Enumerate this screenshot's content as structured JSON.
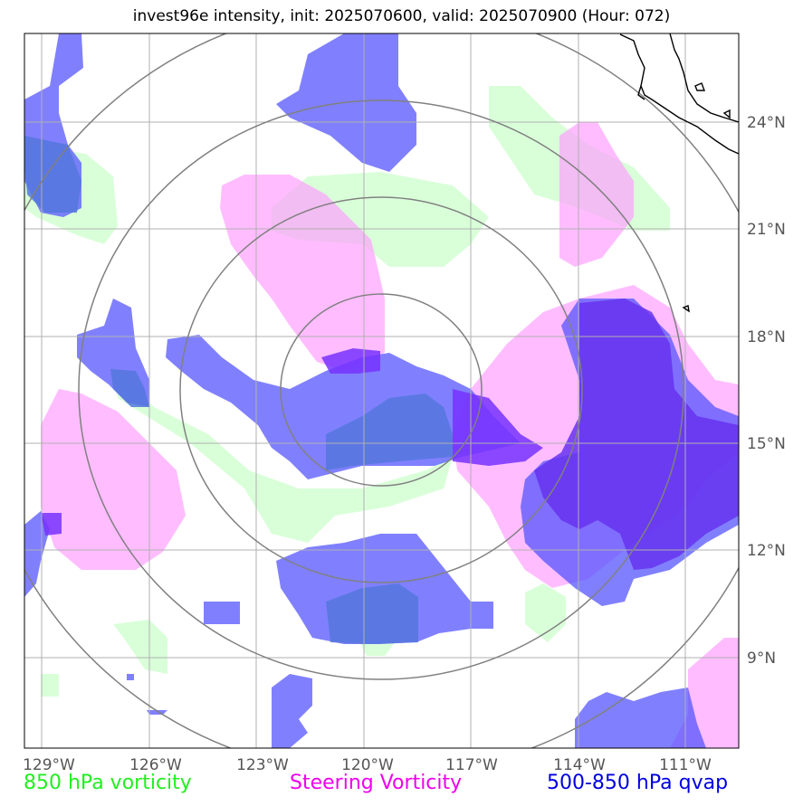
{
  "title": "invest96e intensity, init: 2025070600, valid: 2025070900 (Hour: 072)",
  "map": {
    "lon_ticks": [
      "129°W",
      "126°W",
      "123°W",
      "120°W",
      "117°W",
      "114°W",
      "111°W"
    ],
    "lat_ticks": [
      "24°N",
      "21°N",
      "18°N",
      "15°N",
      "12°N",
      "9°N"
    ],
    "colors": {
      "vorticity_850": "#ccffcc",
      "steering_vorticity": "#ff99ff",
      "qvap_500_850": "#5555ff",
      "qvap_strong": "#6633ff",
      "range_rings": "#808080",
      "grid": "#b0b0b0",
      "coastline": "#000000"
    }
  },
  "legend": {
    "vorticity_850": {
      "label": "850 hPa vorticity",
      "color": "#22ee22"
    },
    "steering_vorticity": {
      "label": "Steering Vorticity",
      "color": "#ee00ee"
    },
    "qvap": {
      "label": "500-850 hPa qvap",
      "color": "#0000dd"
    }
  }
}
